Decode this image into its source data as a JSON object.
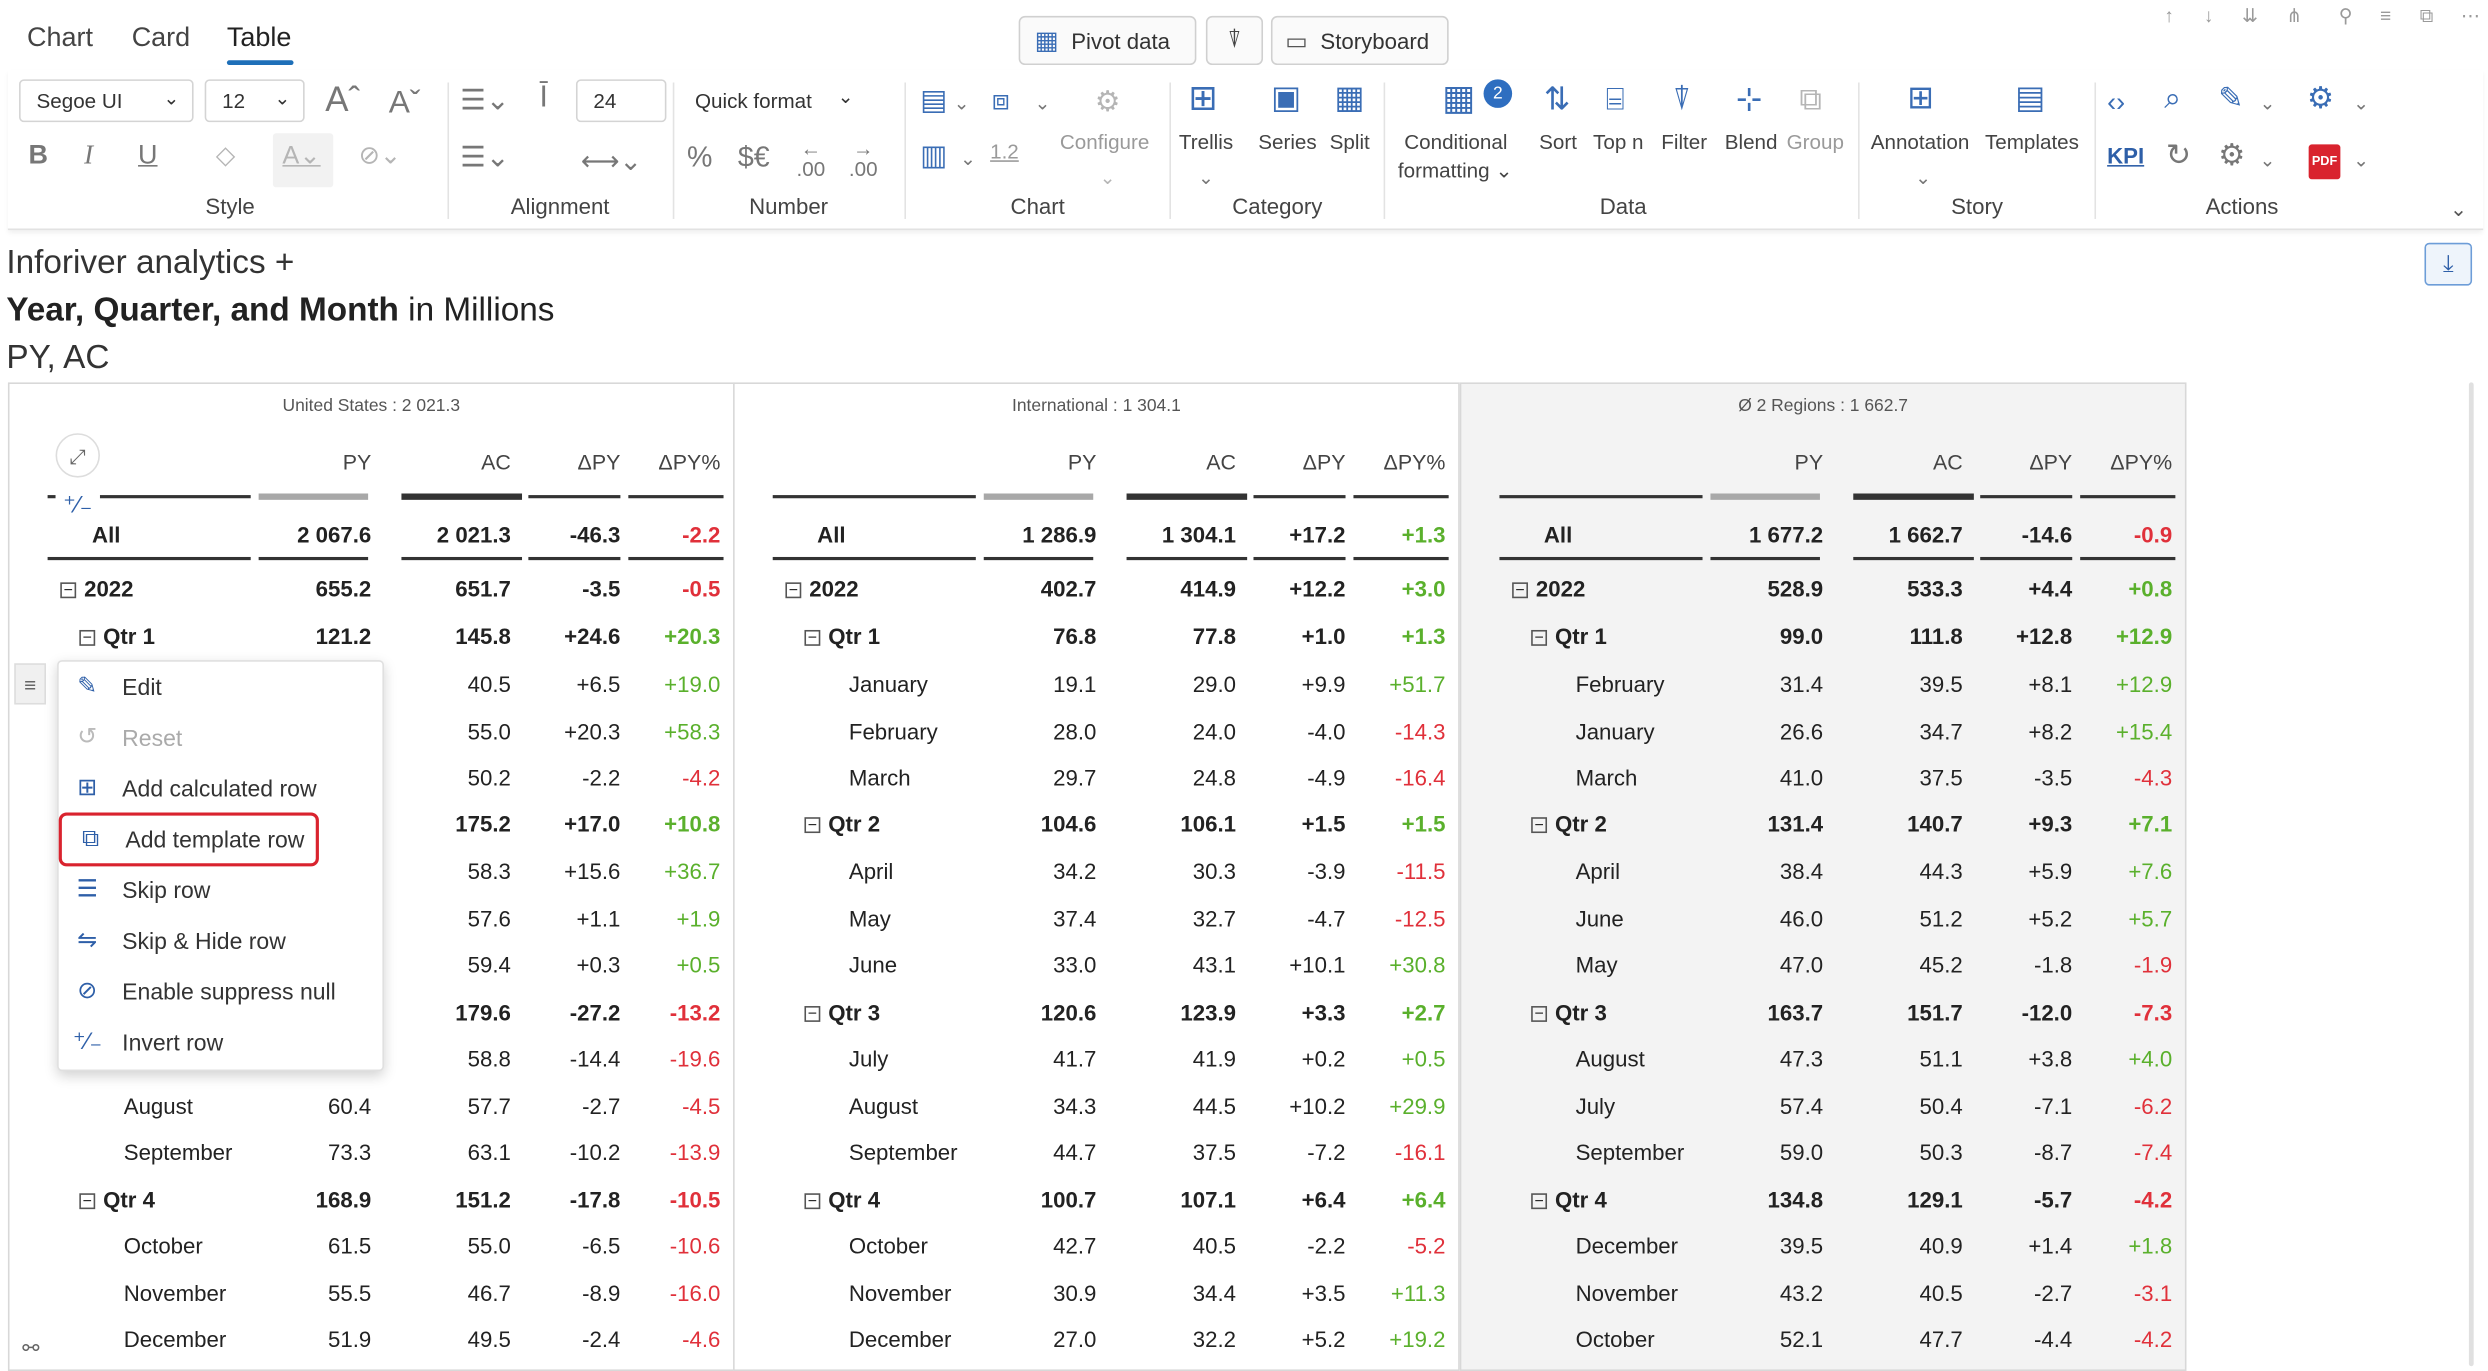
{
  "tabs": [
    "Chart",
    "Card",
    "Table"
  ],
  "active_tab": "Table",
  "top_buttons": {
    "pivot": "Pivot data",
    "storyboard": "Storyboard"
  },
  "ribbon": {
    "font_family": "Segoe UI",
    "font_size": "12",
    "row_height": "24",
    "quick_format": "Quick format",
    "number_samples": {
      "percent": "%",
      "currency": "$€",
      "dec_up": ".00",
      "dec_down": ".00",
      "scale": "1.2"
    },
    "configure": "Configure",
    "trellis": "Trellis",
    "series": "Series",
    "split": "Split",
    "conditional_formatting_1": "Conditional",
    "conditional_formatting_2": "formatting",
    "cf_badge": "2",
    "sort": "Sort",
    "topn": "Top n",
    "filter": "Filter",
    "blend": "Blend",
    "group": "Group",
    "annotation": "Annotation",
    "templates": "Templates",
    "kpi": "KPI",
    "groups": {
      "style": "Style",
      "alignment": "Alignment",
      "number": "Number",
      "chart": "Chart",
      "category": "Category",
      "data": "Data",
      "story": "Story",
      "actions": "Actions"
    }
  },
  "title": {
    "line1": "Inforiver analytics",
    "line1_plus": "+",
    "line2_bold": "Year, Quarter, and Month",
    "line2_rest": "in Millions",
    "line3": "PY, AC"
  },
  "columns": [
    "PY",
    "AC",
    "ΔPY",
    "ΔPY%"
  ],
  "panels": [
    {
      "title": "United States :  2 021.3",
      "rows": [
        {
          "label": "All",
          "type": "all",
          "values": [
            "2 067.6",
            "2 021.3",
            "-46.3",
            "-2.2"
          ]
        },
        {
          "label": "2022",
          "type": "year",
          "values": [
            "655.2",
            "651.7",
            "-3.5",
            "-0.5"
          ]
        },
        {
          "label": "Qtr 1",
          "type": "qtr",
          "values": [
            "121.2",
            "145.8",
            "+24.6",
            "+20.3"
          ]
        },
        {
          "label": "",
          "type": "month",
          "values": [
            "",
            "40.5",
            "+6.5",
            "+19.0"
          ]
        },
        {
          "label": "",
          "type": "month",
          "values": [
            "",
            "55.0",
            "+20.3",
            "+58.3"
          ]
        },
        {
          "label": "",
          "type": "month",
          "values": [
            "",
            "50.2",
            "-2.2",
            "-4.2"
          ]
        },
        {
          "label": "",
          "type": "qtr",
          "values": [
            "",
            "175.2",
            "+17.0",
            "+10.8"
          ]
        },
        {
          "label": "",
          "type": "month",
          "values": [
            "",
            "58.3",
            "+15.6",
            "+36.7"
          ]
        },
        {
          "label": "",
          "type": "month",
          "values": [
            "",
            "57.6",
            "+1.1",
            "+1.9"
          ]
        },
        {
          "label": "",
          "type": "month",
          "values": [
            "",
            "59.4",
            "+0.3",
            "+0.5"
          ]
        },
        {
          "label": "",
          "type": "qtr",
          "values": [
            "",
            "179.6",
            "-27.2",
            "-13.2"
          ]
        },
        {
          "label": "",
          "type": "month",
          "values": [
            "",
            "58.8",
            "-14.4",
            "-19.6"
          ]
        },
        {
          "label": "August",
          "type": "month",
          "values": [
            "60.4",
            "57.7",
            "-2.7",
            "-4.5"
          ]
        },
        {
          "label": "September",
          "type": "month",
          "values": [
            "73.3",
            "63.1",
            "-10.2",
            "-13.9"
          ]
        },
        {
          "label": "Qtr 4",
          "type": "qtr",
          "values": [
            "168.9",
            "151.2",
            "-17.8",
            "-10.5"
          ]
        },
        {
          "label": "October",
          "type": "month",
          "values": [
            "61.5",
            "55.0",
            "-6.5",
            "-10.6"
          ]
        },
        {
          "label": "November",
          "type": "month",
          "values": [
            "55.5",
            "46.7",
            "-8.9",
            "-16.0"
          ]
        },
        {
          "label": "December",
          "type": "month",
          "values": [
            "51.9",
            "49.5",
            "-2.4",
            "-4.6"
          ]
        }
      ]
    },
    {
      "title": "International :  1 304.1",
      "rows": [
        {
          "label": "All",
          "type": "all",
          "values": [
            "1 286.9",
            "1 304.1",
            "+17.2",
            "+1.3"
          ]
        },
        {
          "label": "2022",
          "type": "year",
          "values": [
            "402.7",
            "414.9",
            "+12.2",
            "+3.0"
          ]
        },
        {
          "label": "Qtr 1",
          "type": "qtr",
          "values": [
            "76.8",
            "77.8",
            "+1.0",
            "+1.3"
          ]
        },
        {
          "label": "January",
          "type": "month",
          "values": [
            "19.1",
            "29.0",
            "+9.9",
            "+51.7"
          ]
        },
        {
          "label": "February",
          "type": "month",
          "values": [
            "28.0",
            "24.0",
            "-4.0",
            "-14.3"
          ]
        },
        {
          "label": "March",
          "type": "month",
          "values": [
            "29.7",
            "24.8",
            "-4.9",
            "-16.4"
          ]
        },
        {
          "label": "Qtr 2",
          "type": "qtr",
          "values": [
            "104.6",
            "106.1",
            "+1.5",
            "+1.5"
          ]
        },
        {
          "label": "April",
          "type": "month",
          "values": [
            "34.2",
            "30.3",
            "-3.9",
            "-11.5"
          ]
        },
        {
          "label": "May",
          "type": "month",
          "values": [
            "37.4",
            "32.7",
            "-4.7",
            "-12.5"
          ]
        },
        {
          "label": "June",
          "type": "month",
          "values": [
            "33.0",
            "43.1",
            "+10.1",
            "+30.8"
          ]
        },
        {
          "label": "Qtr 3",
          "type": "qtr",
          "values": [
            "120.6",
            "123.9",
            "+3.3",
            "+2.7"
          ]
        },
        {
          "label": "July",
          "type": "month",
          "values": [
            "41.7",
            "41.9",
            "+0.2",
            "+0.5"
          ]
        },
        {
          "label": "August",
          "type": "month",
          "values": [
            "34.3",
            "44.5",
            "+10.2",
            "+29.9"
          ]
        },
        {
          "label": "September",
          "type": "month",
          "values": [
            "44.7",
            "37.5",
            "-7.2",
            "-16.1"
          ]
        },
        {
          "label": "Qtr 4",
          "type": "qtr",
          "values": [
            "100.7",
            "107.1",
            "+6.4",
            "+6.4"
          ]
        },
        {
          "label": "October",
          "type": "month",
          "values": [
            "42.7",
            "40.5",
            "-2.2",
            "-5.2"
          ]
        },
        {
          "label": "November",
          "type": "month",
          "values": [
            "30.9",
            "34.4",
            "+3.5",
            "+11.3"
          ]
        },
        {
          "label": "December",
          "type": "month",
          "values": [
            "27.0",
            "32.2",
            "+5.2",
            "+19.2"
          ]
        }
      ]
    },
    {
      "title": "Ø 2 Regions :  1 662.7",
      "rows": [
        {
          "label": "All",
          "type": "all",
          "values": [
            "1 677.2",
            "1 662.7",
            "-14.6",
            "-0.9"
          ]
        },
        {
          "label": "2022",
          "type": "year",
          "values": [
            "528.9",
            "533.3",
            "+4.4",
            "+0.8"
          ]
        },
        {
          "label": "Qtr 1",
          "type": "qtr",
          "values": [
            "99.0",
            "111.8",
            "+12.8",
            "+12.9"
          ]
        },
        {
          "label": "February",
          "type": "month",
          "values": [
            "31.4",
            "39.5",
            "+8.1",
            "+12.9"
          ]
        },
        {
          "label": "January",
          "type": "month",
          "values": [
            "26.6",
            "34.7",
            "+8.2",
            "+15.4"
          ]
        },
        {
          "label": "March",
          "type": "month",
          "values": [
            "41.0",
            "37.5",
            "-3.5",
            "-4.3"
          ]
        },
        {
          "label": "Qtr 2",
          "type": "qtr",
          "values": [
            "131.4",
            "140.7",
            "+9.3",
            "+7.1"
          ]
        },
        {
          "label": "April",
          "type": "month",
          "values": [
            "38.4",
            "44.3",
            "+5.9",
            "+7.6"
          ]
        },
        {
          "label": "June",
          "type": "month",
          "values": [
            "46.0",
            "51.2",
            "+5.2",
            "+5.7"
          ]
        },
        {
          "label": "May",
          "type": "month",
          "values": [
            "47.0",
            "45.2",
            "-1.8",
            "-1.9"
          ]
        },
        {
          "label": "Qtr 3",
          "type": "qtr",
          "values": [
            "163.7",
            "151.7",
            "-12.0",
            "-7.3"
          ]
        },
        {
          "label": "August",
          "type": "month",
          "values": [
            "47.3",
            "51.1",
            "+3.8",
            "+4.0"
          ]
        },
        {
          "label": "July",
          "type": "month",
          "values": [
            "57.4",
            "50.4",
            "-7.1",
            "-6.2"
          ]
        },
        {
          "label": "September",
          "type": "month",
          "values": [
            "59.0",
            "50.3",
            "-8.7",
            "-7.4"
          ]
        },
        {
          "label": "Qtr 4",
          "type": "qtr",
          "values": [
            "134.8",
            "129.1",
            "-5.7",
            "-4.2"
          ]
        },
        {
          "label": "December",
          "type": "month",
          "values": [
            "39.5",
            "40.9",
            "+1.4",
            "+1.8"
          ]
        },
        {
          "label": "November",
          "type": "month",
          "values": [
            "43.2",
            "40.5",
            "-2.7",
            "-3.1"
          ]
        },
        {
          "label": "October",
          "type": "month",
          "values": [
            "52.1",
            "47.7",
            "-4.4",
            "-4.2"
          ]
        }
      ]
    }
  ],
  "context_menu": {
    "items": [
      {
        "label": "Edit",
        "icon": "edit-icon",
        "enabled": true
      },
      {
        "label": "Reset",
        "icon": "reset-icon",
        "enabled": false
      },
      {
        "label": "Add calculated row",
        "icon": "add-calculated-row-icon",
        "enabled": true
      },
      {
        "label": "Add template row",
        "icon": "add-template-row-icon",
        "enabled": true,
        "highlighted": true
      },
      {
        "label": "Skip row",
        "icon": "skip-row-icon",
        "enabled": true
      },
      {
        "label": "Skip & Hide row",
        "icon": "skip-hide-row-icon",
        "enabled": true
      },
      {
        "label": "Enable suppress null",
        "icon": "suppress-null-icon",
        "enabled": true
      },
      {
        "label": "Invert row",
        "icon": "invert-row-icon",
        "enabled": true
      }
    ]
  },
  "colors": {
    "positive": "#5ab02c",
    "negative": "#e0303a",
    "accent": "#1e6fb8",
    "highlight": "#d9232e"
  }
}
